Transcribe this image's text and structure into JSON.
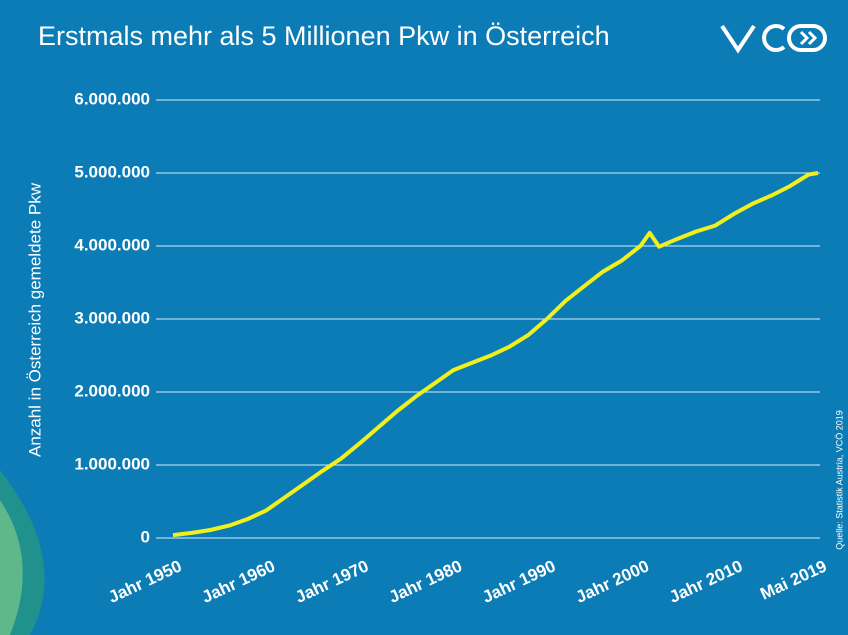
{
  "chart_data": {
    "type": "line",
    "title": "Erstmals mehr als 5 Millionen Pkw in Österreich",
    "y_label": "Anzahl in Österreich gemeldete Pkw",
    "source": "Quelle: Statistik Austria, VCÖ 2019",
    "x": [
      1950,
      1952,
      1954,
      1956,
      1958,
      1960,
      1962,
      1964,
      1966,
      1968,
      1970,
      1972,
      1974,
      1976,
      1978,
      1980,
      1982,
      1984,
      1986,
      1988,
      1990,
      1992,
      1994,
      1996,
      1998,
      2000,
      2001,
      2002,
      2004,
      2006,
      2008,
      2010,
      2012,
      2014,
      2016,
      2018,
      2019
    ],
    "series": [
      {
        "name": "Pkw",
        "color": "#f2f01c",
        "values": [
          40000,
          70000,
          110000,
          170000,
          260000,
          380000,
          560000,
          740000,
          920000,
          1090000,
          1300000,
          1520000,
          1740000,
          1940000,
          2120000,
          2300000,
          2400000,
          2500000,
          2620000,
          2780000,
          3000000,
          3250000,
          3450000,
          3650000,
          3800000,
          4000000,
          4180000,
          3990000,
          4100000,
          4200000,
          4280000,
          4440000,
          4580000,
          4690000,
          4820000,
          4980000,
          5000000
        ]
      }
    ],
    "xlim": [
      1950,
      2019
    ],
    "xticks": [
      {
        "value": 1950,
        "label": "Jahr 1950"
      },
      {
        "value": 1960,
        "label": "Jahr 1960"
      },
      {
        "value": 1970,
        "label": "Jahr 1970"
      },
      {
        "value": 1980,
        "label": "Jahr 1980"
      },
      {
        "value": 1990,
        "label": "Jahr 1990"
      },
      {
        "value": 2000,
        "label": "Jahr 2000"
      },
      {
        "value": 2010,
        "label": "Jahr 2010"
      },
      {
        "value": 2019,
        "label": "Mai 2019"
      }
    ],
    "ylim": [
      0,
      6000000
    ],
    "yticks": [
      0,
      {
        "value": 1000000,
        "label": "1.000.000"
      },
      {
        "value": 2000000,
        "label": "2.000.000"
      },
      {
        "value": 3000000,
        "label": "3.000.000"
      },
      {
        "value": 4000000,
        "label": "4.000.000"
      },
      {
        "value": 5000000,
        "label": "5.000.000"
      },
      {
        "value": 6000000,
        "label": "6.000.000"
      }
    ],
    "grid": true
  }
}
